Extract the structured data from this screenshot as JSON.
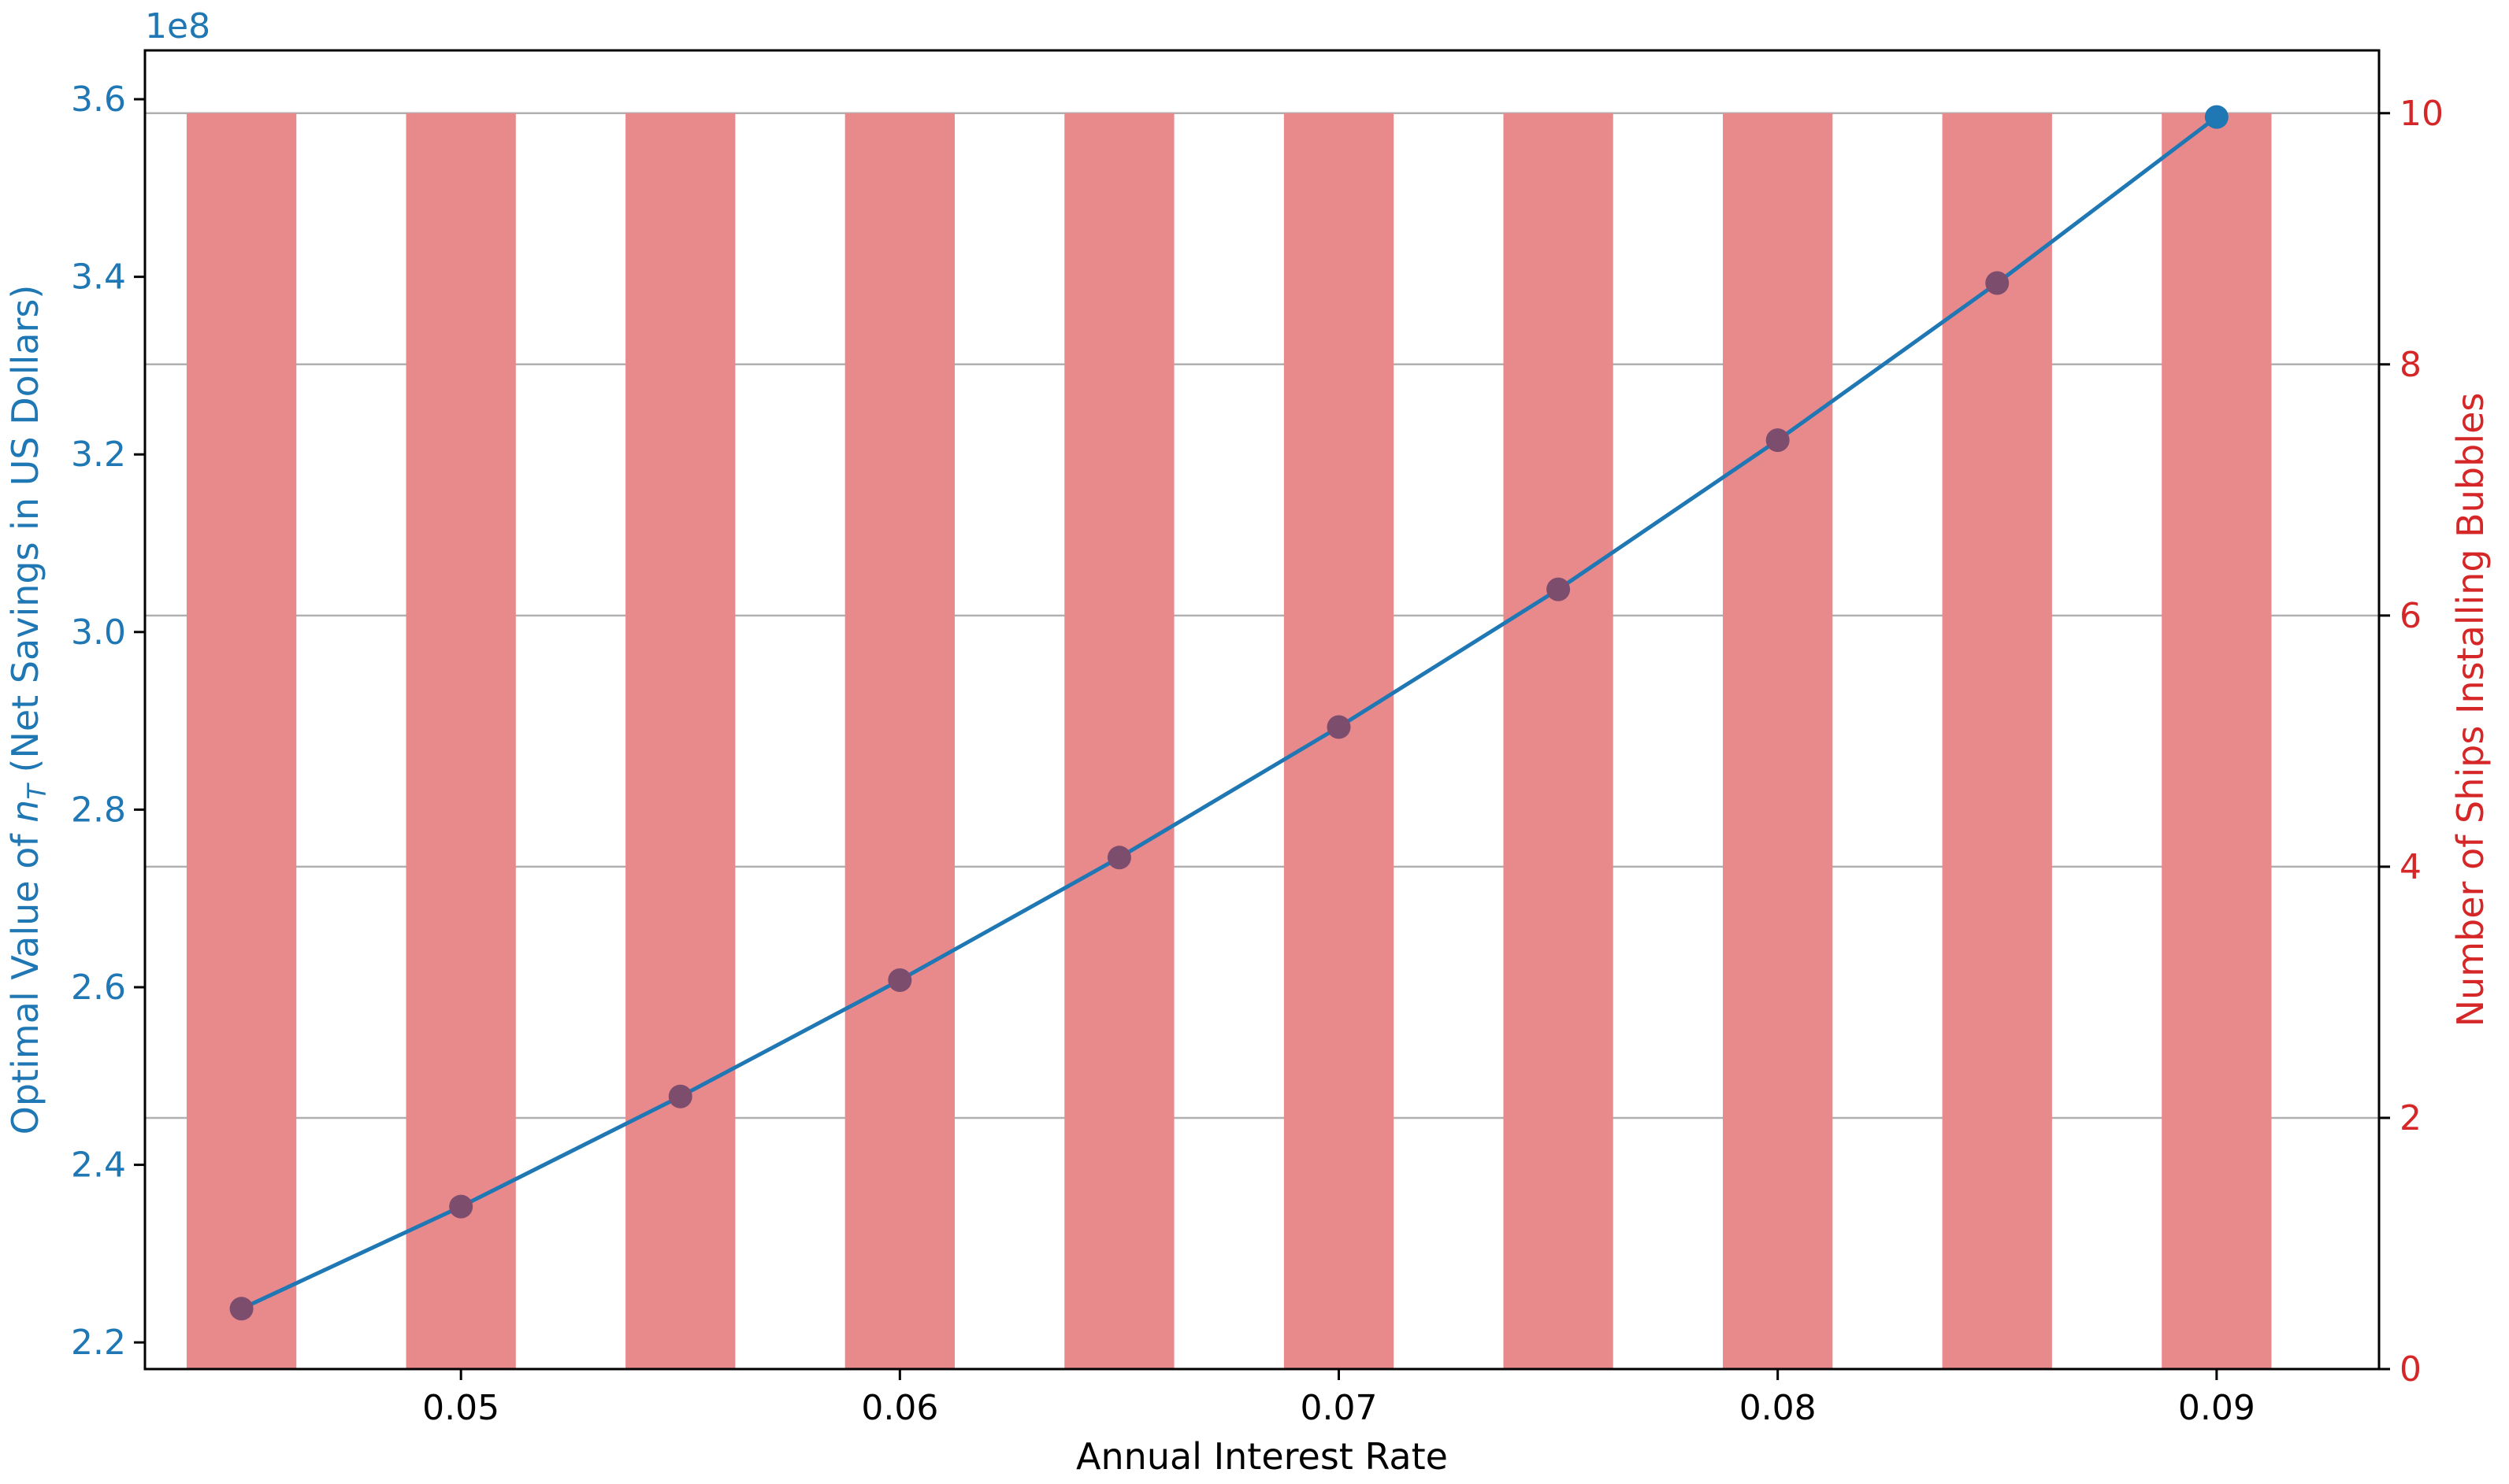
{
  "chart_data": {
    "type": "bar+line",
    "xlabel": "Annual Interest Rate",
    "ylabel_left": "Optimal Value of ",
    "ylabel_left_math": "n",
    "ylabel_left_math_sub": "T",
    "ylabel_left_suffix": " (Net Savings in US Dollars)",
    "ylabel_right": "Number of Ships Installing Bubbles",
    "left_offset_label": "1e8",
    "x": [
      0.045,
      0.05,
      0.055,
      0.06,
      0.065,
      0.07,
      0.075,
      0.08,
      0.085,
      0.09
    ],
    "xlim": [
      0.0428,
      0.0937
    ],
    "ylim_left": [
      2.17,
      3.655
    ],
    "ylim_right": [
      0,
      10.5
    ],
    "x_ticks": [
      0.05,
      0.06,
      0.07,
      0.08,
      0.09
    ],
    "x_tick_labels": [
      "0.05",
      "0.06",
      "0.07",
      "0.08",
      "0.09"
    ],
    "left_ticks": [
      2.2,
      2.4,
      2.6,
      2.8,
      3.0,
      3.2,
      3.4,
      3.6
    ],
    "left_tick_labels": [
      "2.2",
      "2.4",
      "2.6",
      "2.8",
      "3.0",
      "3.2",
      "3.4",
      "3.6"
    ],
    "right_ticks": [
      0,
      2,
      4,
      6,
      8,
      10
    ],
    "right_tick_labels": [
      "0",
      "2",
      "4",
      "6",
      "8",
      "10"
    ],
    "grid": "right-axis horizontal",
    "series": [
      {
        "axis": "right",
        "type": "bar",
        "values": [
          10,
          10,
          10,
          10,
          10,
          10,
          10,
          10,
          10,
          10
        ],
        "bar_width": 0.0025,
        "color": "#E8898C"
      },
      {
        "axis": "left",
        "type": "line",
        "values": [
          2.238,
          2.353,
          2.477,
          2.608,
          2.746,
          2.893,
          3.048,
          3.216,
          3.393,
          3.58
        ],
        "color": "#1F77B4",
        "marker_overlay_color": "#7D4D6E"
      }
    ],
    "left_axis_color": "#1F77B4",
    "right_axis_color": "#D62728"
  }
}
